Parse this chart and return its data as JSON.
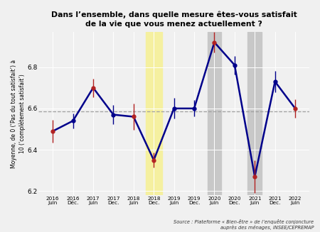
{
  "title": "Dans l’ensemble, dans quelle mesure êtes-vous satisfait\nde la vie que vous menez actuellement ?",
  "ylabel": "Moyenne, de 0 (‘Pas du tout satisfait’) à\n10 (‘complètement satisfait’)",
  "source": "Source : Plateforme « Bien-être » de l’enquête conjoncture\nauprès des ménages, INSEE/CEPREMAP",
  "xlabels": [
    "2016\nJuin",
    "2016\nDéc.",
    "2017\nJuin",
    "2017\nDec.",
    "2018\nJuin",
    "2018\nDec.",
    "2019\nJuin",
    "2019\nDec.",
    "2020\nJuin",
    "2020\nDec.",
    "2021\nJuin",
    "2021\nDec.",
    "2022\nJuin"
  ],
  "y_vals": [
    6.49,
    6.54,
    6.7,
    6.57,
    6.56,
    6.35,
    6.6,
    6.6,
    6.92,
    6.81,
    6.27,
    6.73,
    6.6
  ],
  "y_err": [
    0.055,
    0.035,
    0.045,
    0.045,
    0.065,
    0.035,
    0.05,
    0.04,
    0.05,
    0.045,
    0.08,
    0.05,
    0.045
  ],
  "red_indices": [
    0,
    2,
    4,
    5,
    8,
    10,
    12
  ],
  "hline_y": 6.585,
  "ylim": [
    6.18,
    6.97
  ],
  "line_color": "#00008B",
  "red_dot_color": "#B22222",
  "blue_dot_color": "#00008B",
  "hline_color": "#A0A0A0",
  "yellow_band": [
    4.6,
    5.4
  ],
  "gray_band1": [
    7.65,
    8.35
  ],
  "gray_band2": [
    9.65,
    10.35
  ],
  "yellow_color": "#F5F0A0",
  "gray_color": "#C8C8C8",
  "bg_color": "#F0F0F0"
}
